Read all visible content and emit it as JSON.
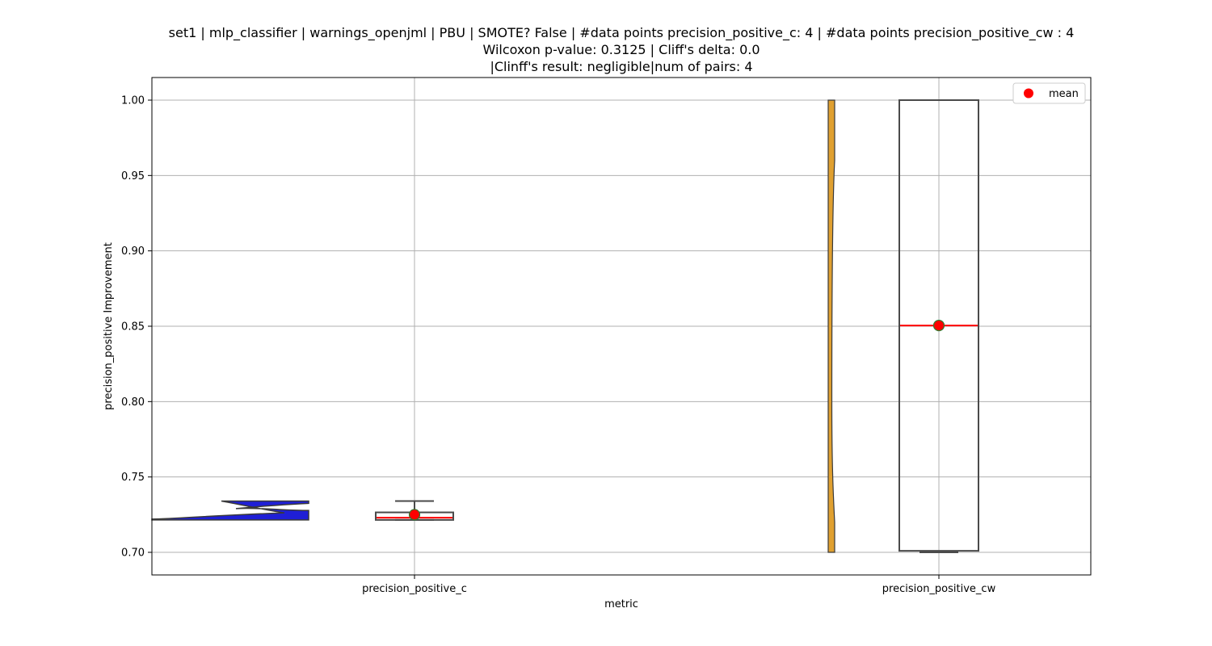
{
  "chart_data": {
    "type": "box",
    "title_lines": [
      "set1 | mlp_classifier | warnings_openjml | PBU | SMOTE? False | #data points precision_positive_c: 4 | #data points precision_positive_cw : 4",
      "Wilcoxon p-value: 0.3125 | Cliff's delta: 0.0",
      "|Clinff's result: negligible|num of pairs: 4"
    ],
    "xlabel": "metric",
    "ylabel": "precision_positive Improvement",
    "ylim": [
      0.685,
      1.015
    ],
    "yticks": [
      0.7,
      0.75,
      0.8,
      0.85,
      0.9,
      0.95,
      1.0
    ],
    "ytick_labels": [
      "0.70",
      "0.75",
      "0.80",
      "0.85",
      "0.90",
      "0.95",
      "1.00"
    ],
    "categories": [
      "precision_positive_c",
      "precision_positive_cw"
    ],
    "grid": true,
    "legend": {
      "placement": "top-right",
      "entries": [
        "mean"
      ]
    },
    "colors": {
      "violin_c": "#1f1fd6",
      "violin_cw": "#e0a030",
      "median": "#ff0000",
      "mean_marker": "#ff0000",
      "mean_edge": "#2e7d32",
      "box_edge": "#4a4a4a",
      "grid": "#b0b0b0"
    },
    "series": [
      {
        "category": "precision_positive_c",
        "box": {
          "q1": 0.7215,
          "median": 0.723,
          "q3": 0.7265,
          "whisker_low": 0.7215,
          "whisker_high": 0.734
        },
        "mean": 0.725,
        "violin": {
          "min": 0.7215,
          "max": 0.734
        }
      },
      {
        "category": "precision_positive_cw",
        "box": {
          "q1": 0.701,
          "median": 0.8505,
          "q3": 1.0,
          "whisker_low": 0.7,
          "whisker_high": 1.0
        },
        "mean": 0.8505,
        "violin": {
          "min": 0.7,
          "max": 1.0
        }
      }
    ]
  }
}
